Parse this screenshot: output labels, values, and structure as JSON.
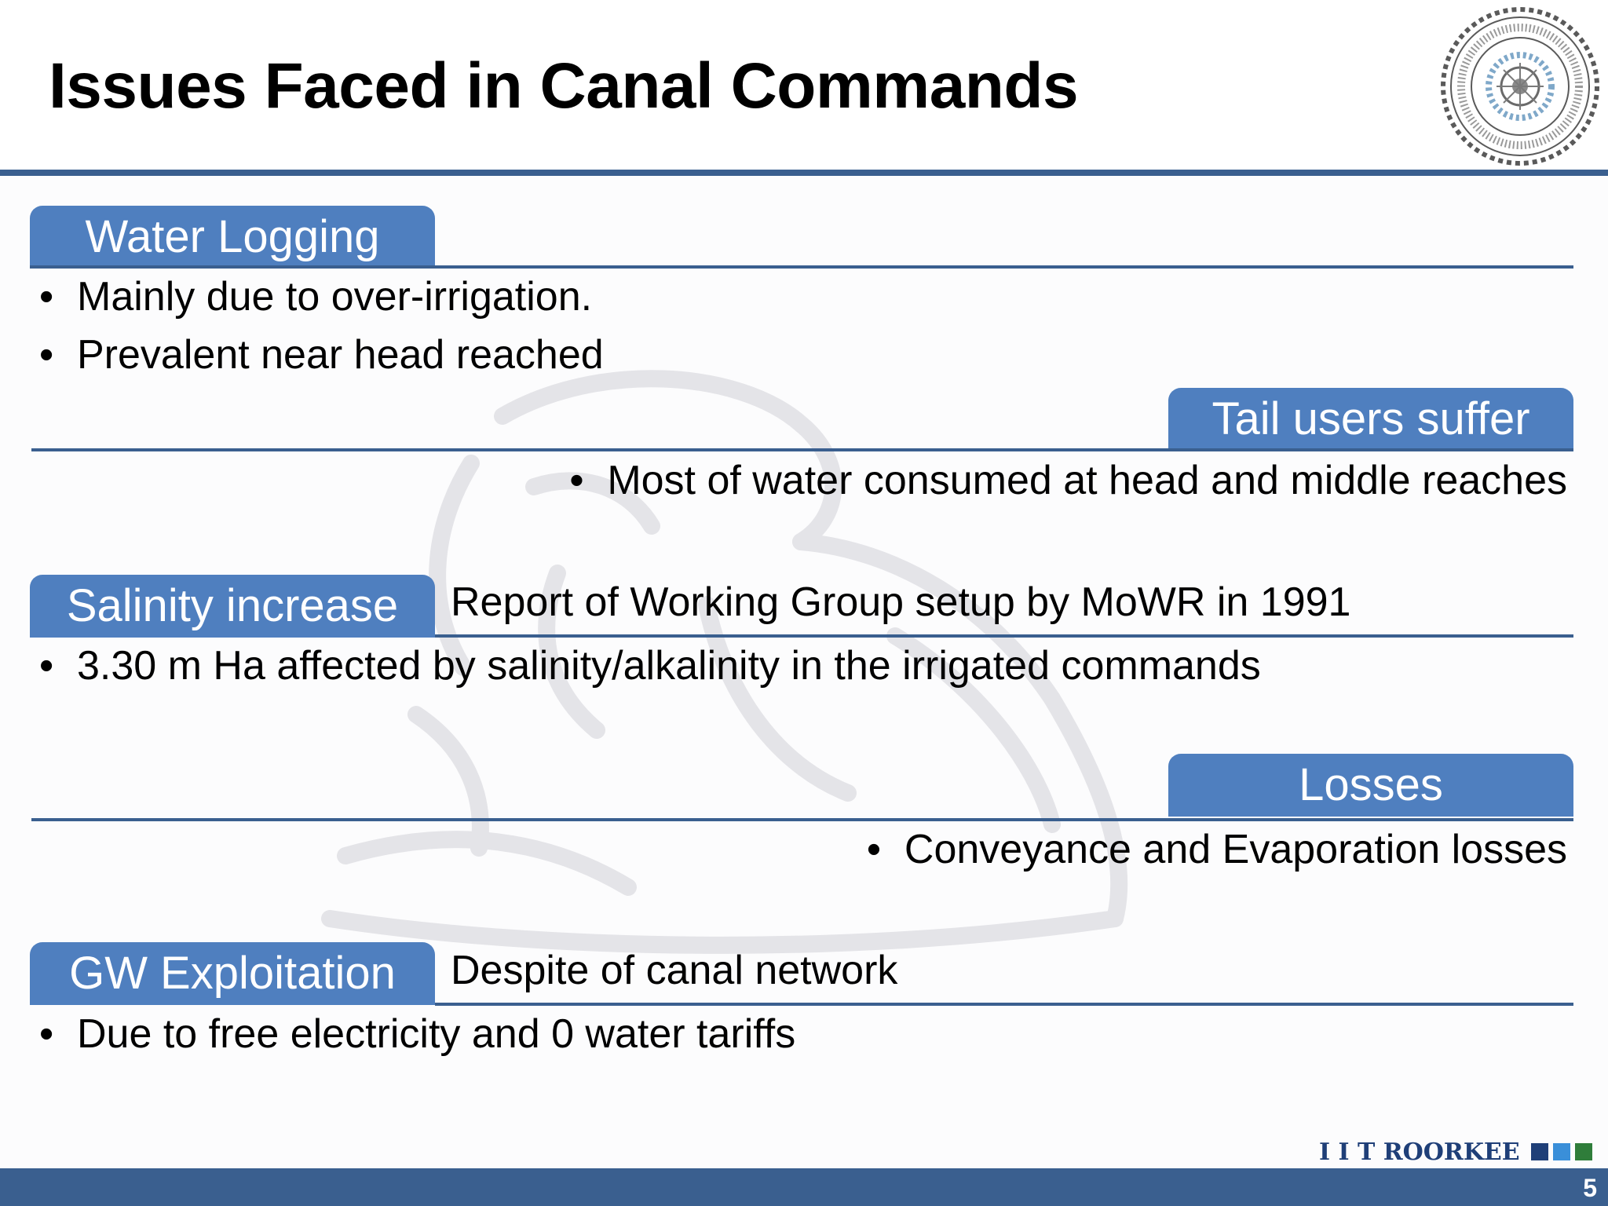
{
  "slide": {
    "title": "Issues Faced in Canal Commands",
    "page_number": "5",
    "brand": {
      "text": "I I T ROORKEE",
      "squares": [
        "#1f3f78",
        "#3a8fd9",
        "#2f7d3a"
      ],
      "text_color": "#1f3f78"
    }
  },
  "colors": {
    "accent_blue": "#4f7fbf",
    "rule_blue": "#3a5f8f",
    "text": "#000000"
  },
  "sections": [
    {
      "label": "Water Logging",
      "note": "",
      "bullets": [
        "Mainly due to over-irrigation.",
        "Prevalent near head reached"
      ]
    },
    {
      "label": "Tail users suffer",
      "note": "",
      "bullets": [
        "Most of water consumed at head and middle reaches"
      ]
    },
    {
      "label": "Salinity increase",
      "note": "Report of Working Group setup by MoWR in 1991",
      "bullets": [
        "3.30 m Ha affected by salinity/alkalinity in the irrigated commands"
      ]
    },
    {
      "label": "Losses",
      "note": "",
      "bullets": [
        "Conveyance and Evaporation losses"
      ]
    },
    {
      "label": "GW Exploitation",
      "note": "Despite of canal network",
      "bullets": [
        "Due to free electricity and 0 water tariffs"
      ]
    }
  ],
  "icons": {
    "bullet": "•",
    "seal": "iit-roorkee-seal-icon",
    "watermark": "lion-watermark-icon"
  }
}
